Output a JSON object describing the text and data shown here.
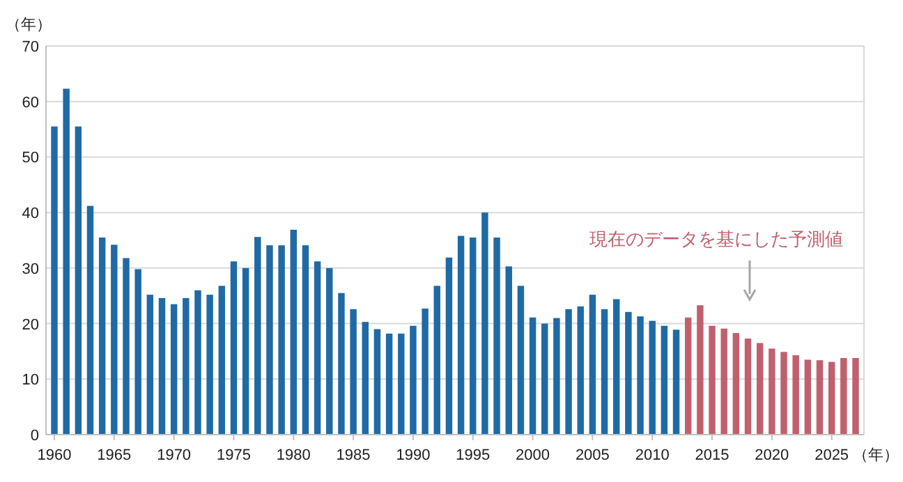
{
  "chart_data": {
    "type": "bar",
    "ylabel": "（年）",
    "xlabel": "（年）",
    "xlim": [
      1959.3,
      2027.7
    ],
    "xticks": [
      1960,
      1965,
      1970,
      1975,
      1980,
      1985,
      1990,
      1995,
      2000,
      2005,
      2010,
      2015,
      2020,
      2025
    ],
    "ylim": [
      0,
      70
    ],
    "yticks": [
      0,
      10,
      20,
      30,
      40,
      50,
      60,
      70
    ],
    "grid": "y",
    "series": [
      {
        "color": "#1f6aa5",
        "x": [
          1960,
          1961,
          1962,
          1963,
          1964,
          1965,
          1966,
          1967,
          1968,
          1969,
          1970,
          1971,
          1972,
          1973,
          1974,
          1975,
          1976,
          1977,
          1978,
          1979,
          1980,
          1981,
          1982,
          1983,
          1984,
          1985,
          1986,
          1987,
          1988,
          1989,
          1990,
          1991,
          1992,
          1993,
          1994,
          1995,
          1996,
          1997,
          1998,
          1999,
          2000,
          2001,
          2002,
          2003,
          2004,
          2005,
          2006,
          2007,
          2008,
          2009,
          2010,
          2011,
          2012
        ],
        "values": [
          55.5,
          62.3,
          55.5,
          41.2,
          35.5,
          34.2,
          31.8,
          29.8,
          25.2,
          24.6,
          23.5,
          24.6,
          26,
          25.2,
          26.8,
          31.2,
          30,
          35.6,
          34.1,
          34.1,
          36.9,
          34.1,
          31.2,
          30,
          25.5,
          22.6,
          20.3,
          19,
          18.2,
          18.2,
          19.6,
          22.7,
          26.8,
          31.9,
          35.8,
          35.5,
          40,
          35.5,
          30.3,
          26.8,
          21.1,
          20,
          21,
          22.6,
          23.1,
          25.2,
          22.6,
          24.4,
          22.1,
          21.3,
          20.5,
          19.6,
          18.9
        ]
      },
      {
        "color": "#c0606e",
        "x": [
          2013,
          2014,
          2015,
          2016,
          2017,
          2018,
          2019,
          2020,
          2021,
          2022,
          2023,
          2024,
          2025,
          2026,
          2027
        ],
        "values": [
          21.1,
          23.3,
          19.6,
          19.1,
          18.3,
          17.3,
          16.5,
          15.5,
          14.9,
          14.3,
          13.5,
          13.4,
          13.1,
          13.8,
          13.8
        ]
      }
    ],
    "annotations": [
      "現在のデータを基にした予測値"
    ]
  }
}
